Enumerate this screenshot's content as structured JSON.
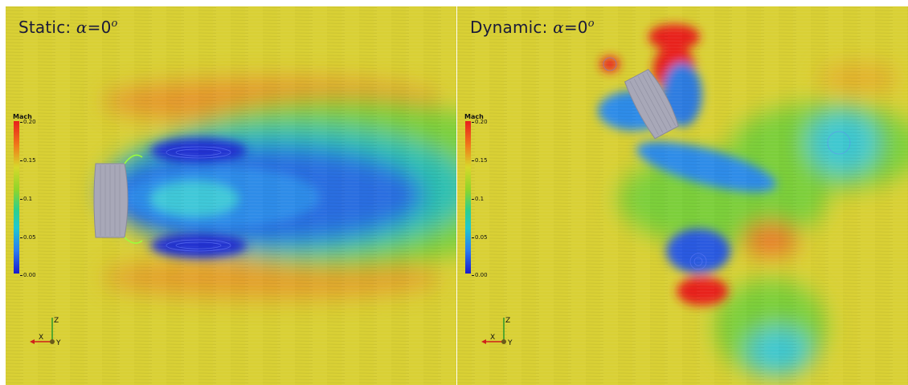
{
  "panels": [
    {
      "title_prefix": "Static: ",
      "alpha_symbol": "α",
      "alpha_value": "=0",
      "alpha_unit": "o"
    },
    {
      "title_prefix": "Dynamic: ",
      "alpha_symbol": "α",
      "alpha_value": "=0",
      "alpha_unit": "o"
    }
  ],
  "colorbar": {
    "label": "Mach",
    "ticks": [
      "0.20",
      "0.15",
      "0.1",
      "0.05",
      "0.00"
    ],
    "colors": {
      "high": "#e8201c",
      "mid_high": "#d8d82a",
      "mid": "#8fd62a",
      "mid_low": "#1fc8d0",
      "low": "#1a1acd"
    }
  },
  "axes_triad": {
    "z_label": "Z",
    "x_label": "X",
    "y_label": "Y"
  },
  "colors": {
    "freestream": "#d9d035",
    "body": "#a8a8b8"
  }
}
